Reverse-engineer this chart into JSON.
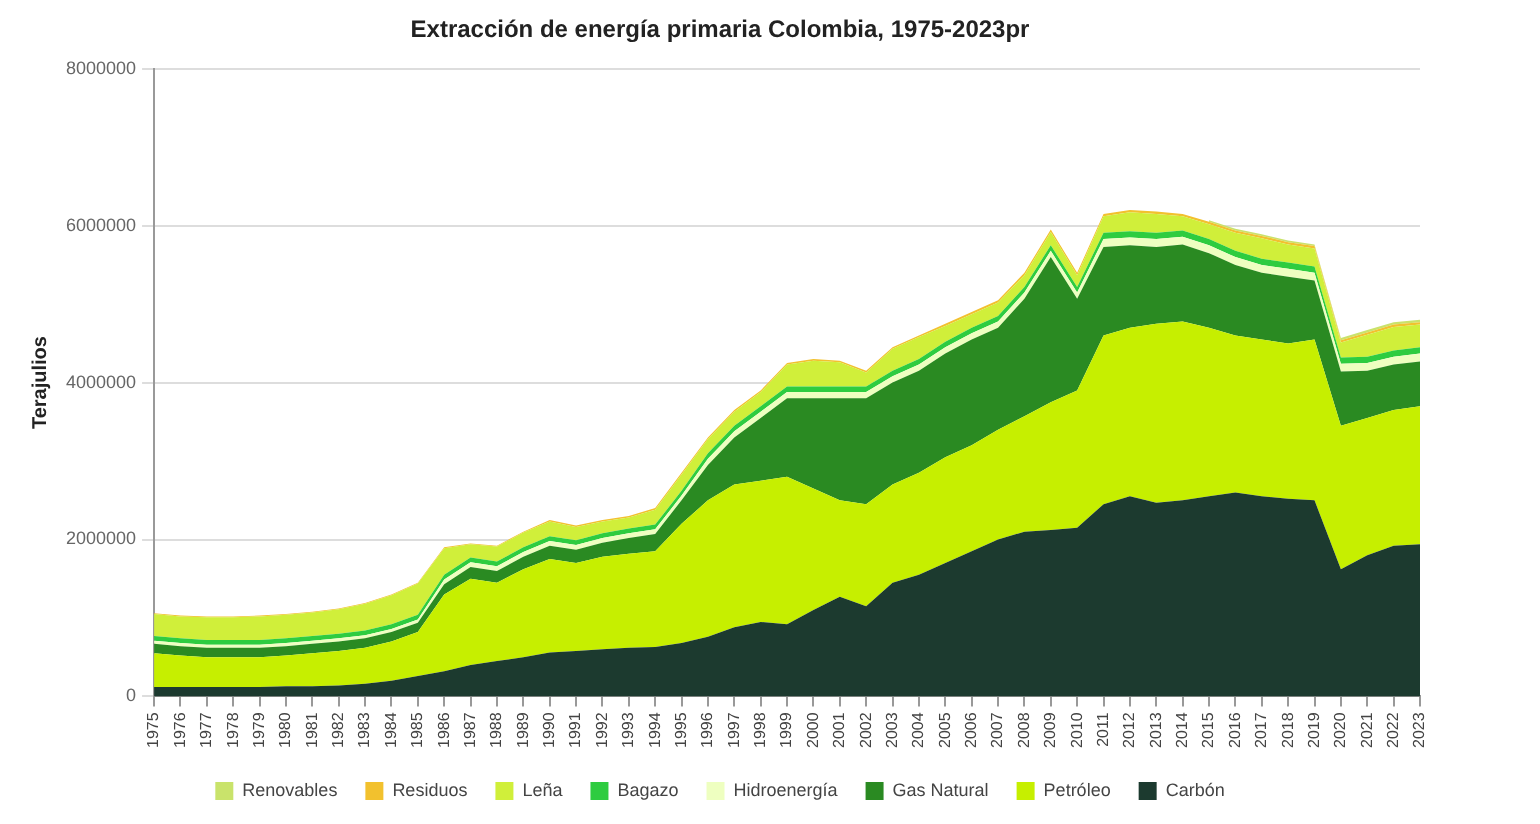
{
  "chart_data": {
    "type": "area",
    "title": "Extracción de energía primaria Colombia, 1975-2023pr",
    "ylabel": "Terajulios",
    "categories": [
      "1975",
      "1976",
      "1977",
      "1978",
      "1979",
      "1980",
      "1981",
      "1982",
      "1983",
      "1984",
      "1985",
      "1986",
      "1987",
      "1988",
      "1989",
      "1990",
      "1991",
      "1992",
      "1993",
      "1994",
      "1995",
      "1996",
      "1997",
      "1998",
      "1999",
      "2000",
      "2001",
      "2002",
      "2003",
      "2004",
      "2005",
      "2006",
      "2007",
      "2008",
      "2009",
      "2010",
      "2011",
      "2012",
      "2013",
      "2014",
      "2015",
      "2016",
      "2017",
      "2018",
      "2019",
      "2020",
      "2021",
      "2022",
      "2023"
    ],
    "stacked": true,
    "ylim": [
      0,
      8000000
    ],
    "yticks": [
      0,
      2000000,
      4000000,
      6000000,
      8000000
    ],
    "grid": "y",
    "legend": "bottom",
    "series": [
      {
        "name": "Carbón",
        "color": "#1c3a2f",
        "values": [
          120000,
          120000,
          120000,
          120000,
          120000,
          130000,
          130000,
          140000,
          160000,
          200000,
          260000,
          320000,
          400000,
          450000,
          500000,
          560000,
          580000,
          600000,
          620000,
          630000,
          680000,
          760000,
          880000,
          950000,
          920000,
          1100000,
          1270000,
          1150000,
          1450000,
          1550000,
          1700000,
          1850000,
          2000000,
          2100000,
          2120000,
          2150000,
          2450000,
          2550000,
          2470000,
          2500000,
          2550000,
          2600000,
          2550000,
          2520000,
          2500000,
          1620000,
          1800000,
          1920000,
          1940000
        ]
      },
      {
        "name": "Petróleo",
        "color": "#c6ef00",
        "values": [
          430000,
          400000,
          380000,
          380000,
          380000,
          390000,
          420000,
          440000,
          460000,
          500000,
          560000,
          980000,
          1100000,
          1000000,
          1120000,
          1190000,
          1120000,
          1180000,
          1200000,
          1220000,
          1520000,
          1740000,
          1820000,
          1800000,
          1880000,
          1550000,
          1230000,
          1300000,
          1250000,
          1300000,
          1350000,
          1350000,
          1400000,
          1470000,
          1630000,
          1750000,
          2150000,
          2150000,
          2280000,
          2280000,
          2150000,
          2000000,
          2000000,
          1980000,
          2050000,
          1830000,
          1750000,
          1730000,
          1760000
        ]
      },
      {
        "name": "Gas Natural",
        "color": "#2a8a22",
        "values": [
          120000,
          120000,
          120000,
          120000,
          120000,
          120000,
          120000,
          120000,
          120000,
          120000,
          120000,
          130000,
          150000,
          150000,
          160000,
          170000,
          170000,
          180000,
          200000,
          220000,
          300000,
          450000,
          600000,
          800000,
          1000000,
          1150000,
          1300000,
          1350000,
          1300000,
          1300000,
          1320000,
          1350000,
          1300000,
          1500000,
          1850000,
          1170000,
          1130000,
          1050000,
          980000,
          980000,
          950000,
          900000,
          850000,
          850000,
          750000,
          690000,
          600000,
          580000,
          570000
        ]
      },
      {
        "name": "Hidroenergía",
        "color": "#eeffc0",
        "values": [
          40000,
          40000,
          40000,
          40000,
          40000,
          40000,
          40000,
          40000,
          40000,
          40000,
          40000,
          60000,
          60000,
          60000,
          60000,
          60000,
          60000,
          60000,
          60000,
          60000,
          60000,
          80000,
          80000,
          80000,
          80000,
          80000,
          80000,
          80000,
          80000,
          80000,
          80000,
          80000,
          80000,
          80000,
          80000,
          80000,
          100000,
          100000,
          100000,
          100000,
          100000,
          100000,
          100000,
          100000,
          100000,
          100000,
          100000,
          100000,
          100000
        ]
      },
      {
        "name": "Bagazo",
        "color": "#2ecc40",
        "values": [
          60000,
          60000,
          60000,
          60000,
          60000,
          60000,
          60000,
          60000,
          60000,
          60000,
          60000,
          60000,
          60000,
          60000,
          60000,
          60000,
          60000,
          60000,
          60000,
          60000,
          60000,
          70000,
          70000,
          70000,
          70000,
          70000,
          70000,
          70000,
          70000,
          70000,
          70000,
          70000,
          70000,
          70000,
          70000,
          70000,
          80000,
          80000,
          80000,
          80000,
          80000,
          80000,
          80000,
          80000,
          80000,
          80000,
          80000,
          80000,
          80000
        ]
      },
      {
        "name": "Leña",
        "color": "#d0ef3a",
        "values": [
          280000,
          280000,
          290000,
          290000,
          300000,
          300000,
          300000,
          310000,
          340000,
          370000,
          400000,
          340000,
          170000,
          190000,
          190000,
          190000,
          170000,
          150000,
          140000,
          190000,
          210000,
          180000,
          180000,
          180000,
          280000,
          330000,
          310000,
          180000,
          280000,
          280000,
          200000,
          170000,
          170000,
          150000,
          170000,
          150000,
          210000,
          240000,
          240000,
          180000,
          190000,
          230000,
          260000,
          230000,
          230000,
          190000,
          280000,
          300000,
          290000
        ]
      },
      {
        "name": "Residuos",
        "color": "#f2c12e",
        "values": [
          10000,
          10000,
          10000,
          10000,
          10000,
          10000,
          10000,
          10000,
          10000,
          10000,
          10000,
          10000,
          10000,
          10000,
          10000,
          20000,
          20000,
          20000,
          20000,
          20000,
          20000,
          20000,
          20000,
          20000,
          20000,
          20000,
          20000,
          20000,
          20000,
          20000,
          30000,
          30000,
          30000,
          30000,
          30000,
          30000,
          30000,
          30000,
          30000,
          30000,
          30000,
          30000,
          30000,
          30000,
          30000,
          30000,
          30000,
          30000,
          30000
        ]
      },
      {
        "name": "Renovables",
        "color": "#c9e36b",
        "values": [
          null,
          null,
          null,
          null,
          null,
          null,
          null,
          null,
          null,
          null,
          null,
          null,
          null,
          null,
          null,
          null,
          null,
          null,
          null,
          null,
          null,
          null,
          null,
          null,
          null,
          null,
          null,
          null,
          null,
          null,
          null,
          null,
          null,
          null,
          null,
          null,
          null,
          null,
          null,
          null,
          20000,
          20000,
          20000,
          20000,
          20000,
          30000,
          30000,
          30000,
          30000
        ]
      }
    ]
  }
}
